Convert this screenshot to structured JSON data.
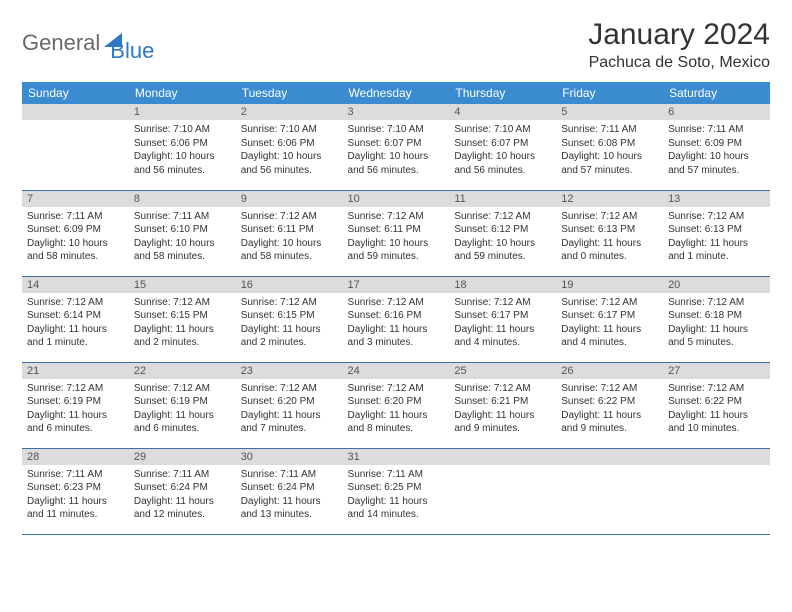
{
  "logo": {
    "part1": "General",
    "part2": "Blue"
  },
  "title": "January 2024",
  "location": "Pachuca de Soto, Mexico",
  "colors": {
    "header_bg": "#3b8bd0",
    "header_text": "#ffffff",
    "daynum_bg": "#dcdcdc",
    "border": "#3b6fa5",
    "logo_gray": "#6a6a6a",
    "logo_blue": "#2b79c2",
    "text": "#333333"
  },
  "weekdays": [
    "Sunday",
    "Monday",
    "Tuesday",
    "Wednesday",
    "Thursday",
    "Friday",
    "Saturday"
  ],
  "weeks": [
    [
      null,
      {
        "n": "1",
        "sr": "Sunrise: 7:10 AM",
        "ss": "Sunset: 6:06 PM",
        "dl": "Daylight: 10 hours and 56 minutes."
      },
      {
        "n": "2",
        "sr": "Sunrise: 7:10 AM",
        "ss": "Sunset: 6:06 PM",
        "dl": "Daylight: 10 hours and 56 minutes."
      },
      {
        "n": "3",
        "sr": "Sunrise: 7:10 AM",
        "ss": "Sunset: 6:07 PM",
        "dl": "Daylight: 10 hours and 56 minutes."
      },
      {
        "n": "4",
        "sr": "Sunrise: 7:10 AM",
        "ss": "Sunset: 6:07 PM",
        "dl": "Daylight: 10 hours and 56 minutes."
      },
      {
        "n": "5",
        "sr": "Sunrise: 7:11 AM",
        "ss": "Sunset: 6:08 PM",
        "dl": "Daylight: 10 hours and 57 minutes."
      },
      {
        "n": "6",
        "sr": "Sunrise: 7:11 AM",
        "ss": "Sunset: 6:09 PM",
        "dl": "Daylight: 10 hours and 57 minutes."
      }
    ],
    [
      {
        "n": "7",
        "sr": "Sunrise: 7:11 AM",
        "ss": "Sunset: 6:09 PM",
        "dl": "Daylight: 10 hours and 58 minutes."
      },
      {
        "n": "8",
        "sr": "Sunrise: 7:11 AM",
        "ss": "Sunset: 6:10 PM",
        "dl": "Daylight: 10 hours and 58 minutes."
      },
      {
        "n": "9",
        "sr": "Sunrise: 7:12 AM",
        "ss": "Sunset: 6:11 PM",
        "dl": "Daylight: 10 hours and 58 minutes."
      },
      {
        "n": "10",
        "sr": "Sunrise: 7:12 AM",
        "ss": "Sunset: 6:11 PM",
        "dl": "Daylight: 10 hours and 59 minutes."
      },
      {
        "n": "11",
        "sr": "Sunrise: 7:12 AM",
        "ss": "Sunset: 6:12 PM",
        "dl": "Daylight: 10 hours and 59 minutes."
      },
      {
        "n": "12",
        "sr": "Sunrise: 7:12 AM",
        "ss": "Sunset: 6:13 PM",
        "dl": "Daylight: 11 hours and 0 minutes."
      },
      {
        "n": "13",
        "sr": "Sunrise: 7:12 AM",
        "ss": "Sunset: 6:13 PM",
        "dl": "Daylight: 11 hours and 1 minute."
      }
    ],
    [
      {
        "n": "14",
        "sr": "Sunrise: 7:12 AM",
        "ss": "Sunset: 6:14 PM",
        "dl": "Daylight: 11 hours and 1 minute."
      },
      {
        "n": "15",
        "sr": "Sunrise: 7:12 AM",
        "ss": "Sunset: 6:15 PM",
        "dl": "Daylight: 11 hours and 2 minutes."
      },
      {
        "n": "16",
        "sr": "Sunrise: 7:12 AM",
        "ss": "Sunset: 6:15 PM",
        "dl": "Daylight: 11 hours and 2 minutes."
      },
      {
        "n": "17",
        "sr": "Sunrise: 7:12 AM",
        "ss": "Sunset: 6:16 PM",
        "dl": "Daylight: 11 hours and 3 minutes."
      },
      {
        "n": "18",
        "sr": "Sunrise: 7:12 AM",
        "ss": "Sunset: 6:17 PM",
        "dl": "Daylight: 11 hours and 4 minutes."
      },
      {
        "n": "19",
        "sr": "Sunrise: 7:12 AM",
        "ss": "Sunset: 6:17 PM",
        "dl": "Daylight: 11 hours and 4 minutes."
      },
      {
        "n": "20",
        "sr": "Sunrise: 7:12 AM",
        "ss": "Sunset: 6:18 PM",
        "dl": "Daylight: 11 hours and 5 minutes."
      }
    ],
    [
      {
        "n": "21",
        "sr": "Sunrise: 7:12 AM",
        "ss": "Sunset: 6:19 PM",
        "dl": "Daylight: 11 hours and 6 minutes."
      },
      {
        "n": "22",
        "sr": "Sunrise: 7:12 AM",
        "ss": "Sunset: 6:19 PM",
        "dl": "Daylight: 11 hours and 6 minutes."
      },
      {
        "n": "23",
        "sr": "Sunrise: 7:12 AM",
        "ss": "Sunset: 6:20 PM",
        "dl": "Daylight: 11 hours and 7 minutes."
      },
      {
        "n": "24",
        "sr": "Sunrise: 7:12 AM",
        "ss": "Sunset: 6:20 PM",
        "dl": "Daylight: 11 hours and 8 minutes."
      },
      {
        "n": "25",
        "sr": "Sunrise: 7:12 AM",
        "ss": "Sunset: 6:21 PM",
        "dl": "Daylight: 11 hours and 9 minutes."
      },
      {
        "n": "26",
        "sr": "Sunrise: 7:12 AM",
        "ss": "Sunset: 6:22 PM",
        "dl": "Daylight: 11 hours and 9 minutes."
      },
      {
        "n": "27",
        "sr": "Sunrise: 7:12 AM",
        "ss": "Sunset: 6:22 PM",
        "dl": "Daylight: 11 hours and 10 minutes."
      }
    ],
    [
      {
        "n": "28",
        "sr": "Sunrise: 7:11 AM",
        "ss": "Sunset: 6:23 PM",
        "dl": "Daylight: 11 hours and 11 minutes."
      },
      {
        "n": "29",
        "sr": "Sunrise: 7:11 AM",
        "ss": "Sunset: 6:24 PM",
        "dl": "Daylight: 11 hours and 12 minutes."
      },
      {
        "n": "30",
        "sr": "Sunrise: 7:11 AM",
        "ss": "Sunset: 6:24 PM",
        "dl": "Daylight: 11 hours and 13 minutes."
      },
      {
        "n": "31",
        "sr": "Sunrise: 7:11 AM",
        "ss": "Sunset: 6:25 PM",
        "dl": "Daylight: 11 hours and 14 minutes."
      },
      null,
      null,
      null
    ]
  ]
}
